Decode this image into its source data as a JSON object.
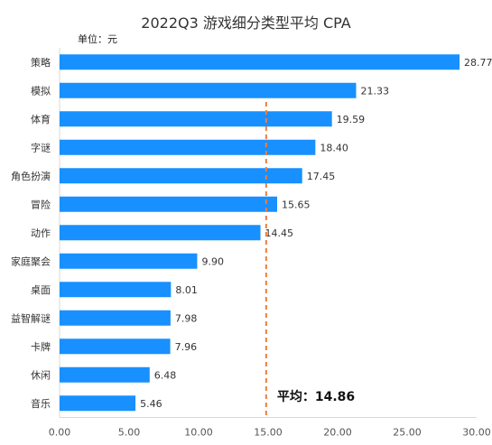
{
  "chart_data": {
    "type": "bar",
    "orientation": "horizontal",
    "title": "2022Q3 游戏细分类型平均 CPA",
    "unit_label": "单位：元",
    "categories": [
      "策略",
      "模拟",
      "体育",
      "字谜",
      "角色扮演",
      "冒险",
      "动作",
      "家庭聚会",
      "桌面",
      "益智解谜",
      "卡牌",
      "休闲",
      "音乐"
    ],
    "values": [
      28.77,
      21.33,
      19.59,
      18.4,
      17.45,
      15.65,
      14.45,
      9.9,
      8.01,
      7.98,
      7.96,
      6.48,
      5.46
    ],
    "value_labels": [
      "28.77",
      "21.33",
      "19.59",
      "18.40",
      "17.45",
      "15.65",
      "14.45",
      "9.90",
      "8.01",
      "7.98",
      "7.96",
      "6.48",
      "5.46"
    ],
    "xlim": [
      0,
      30
    ],
    "x_ticks": [
      0,
      5,
      10,
      15,
      20,
      25,
      30
    ],
    "x_tick_labels": [
      "0.00",
      "5.00",
      "10.00",
      "15.00",
      "20.00",
      "25.00",
      "30.00"
    ],
    "grid": false,
    "bar_color": "#1890FF",
    "average": {
      "value": 14.86,
      "label": "平均：14.86",
      "color": "#F07D3A"
    }
  }
}
